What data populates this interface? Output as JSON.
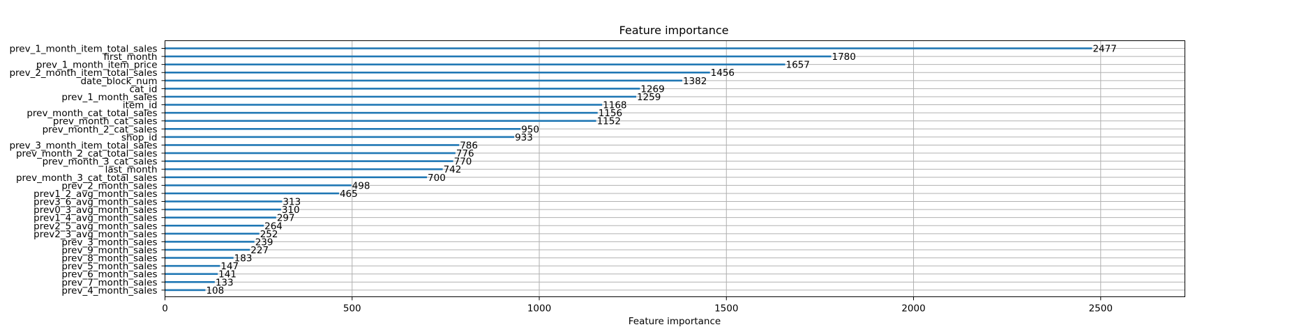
{
  "chart_data": {
    "type": "bar",
    "orientation": "horizontal",
    "title": "Feature importance",
    "xlabel": "Feature importance",
    "ylabel": "",
    "xlim": [
      0,
      2725
    ],
    "xticks": [
      0,
      500,
      1000,
      1500,
      2000,
      2500
    ],
    "grid": true,
    "bar_color": "#1f77b4",
    "grid_color": "#b0b0b0",
    "categories": [
      "prev_1_month_item_total_sales",
      "first_month",
      "prev_1_month_item_price",
      "prev_2_month_item_total_sales",
      "date_block_num",
      "cat_id",
      "prev_1_month_sales",
      "item_id",
      "prev_month_cat_total_sales",
      "prev_month_cat_sales",
      "prev_month_2_cat_sales",
      "shop_id",
      "prev_3_month_item_total_sales",
      "prev_month_2_cat_total_sales",
      "prev_month_3_cat_sales",
      "last_month",
      "prev_month_3_cat_total_sales",
      "prev_2_month_sales",
      "prev1_2_avg_month_sales",
      "prev3_6_avg_month_sales",
      "prev0_3_avg_month_sales",
      "prev1_4_avg_month_sales",
      "prev2_5_avg_month_sales",
      "prev2_3_avg_month_sales",
      "prev_3_month_sales",
      "prev_9_month_sales",
      "prev_8_month_sales",
      "prev_5_month_sales",
      "prev_6_month_sales",
      "prev_7_month_sales",
      "prev_4_month_sales"
    ],
    "values": [
      2477,
      1780,
      1657,
      1456,
      1382,
      1269,
      1259,
      1168,
      1156,
      1152,
      950,
      933,
      786,
      776,
      770,
      742,
      700,
      498,
      465,
      313,
      310,
      297,
      264,
      252,
      239,
      227,
      183,
      147,
      141,
      133,
      108
    ]
  }
}
